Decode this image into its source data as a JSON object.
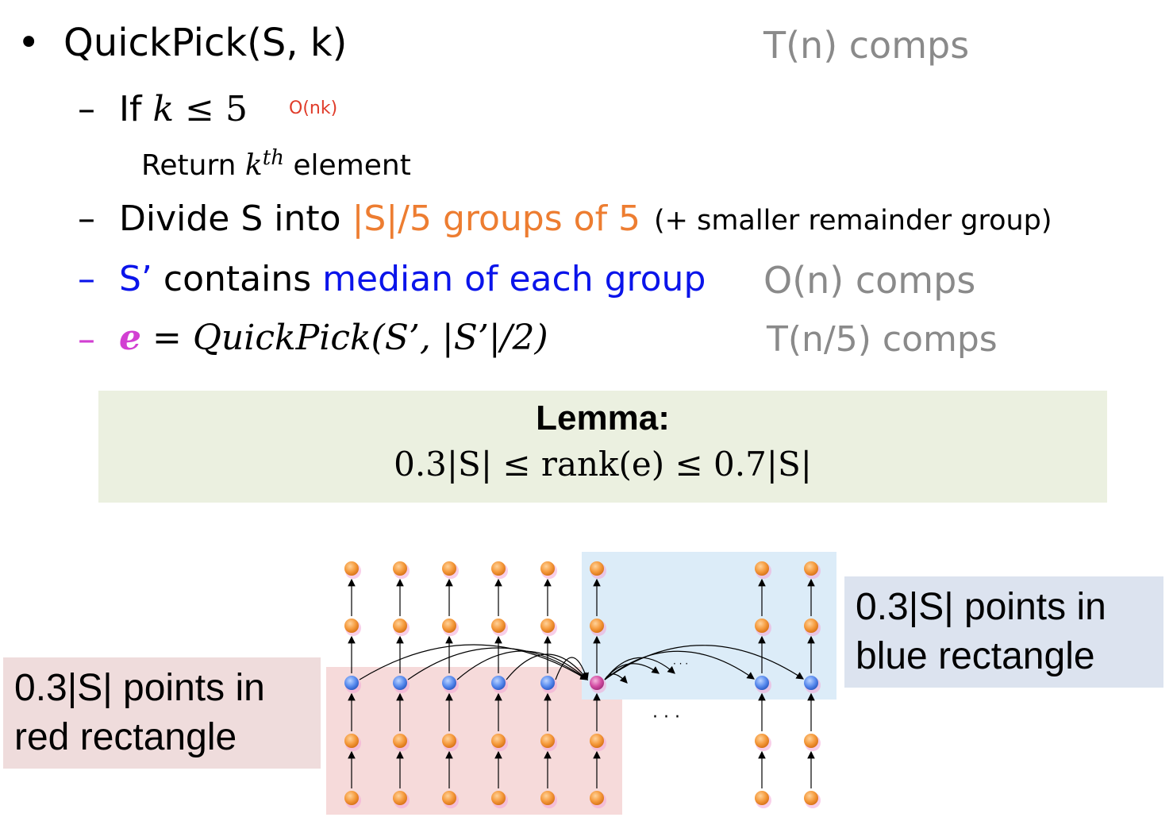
{
  "bullet": "•",
  "title": "QuickPick(S, k)",
  "title_cost": "T(n) comps",
  "dash": "–",
  "step1": {
    "prefix": "If",
    "k": "k",
    "rest": "≤ 5",
    "cost": "O(nk)",
    "sub_prefix": "Return",
    "sub_k": "k",
    "sub_sup": "th",
    "sub_suffix": "element"
  },
  "step2": {
    "prefix": "Divide S into",
    "highlight": "|S|/5 groups of 5",
    "note": "(+ smaller remainder group)"
  },
  "step3": {
    "prefix": "S’",
    "middle": "contains",
    "highlight": "median of each group",
    "cost": "O(n) comps"
  },
  "step4": {
    "e": "e",
    "formula": "= QuickPick(S’, |S’|/2)",
    "cost": "T(n/5) comps"
  },
  "lemma": {
    "title": "Lemma:",
    "formula": "0.3|S| ≤ rank(e) ≤ 0.7|S|"
  },
  "red_label": {
    "line1": "0.3|S| points in",
    "line2": "red rectangle"
  },
  "blue_label": {
    "line1": "0.3|S| points in",
    "line2": "blue rectangle"
  },
  "diagram": {
    "dots_label": "· · ·",
    "small_dots_label": "· · ·"
  },
  "colors": {
    "orange": "#ed7d31",
    "blue": "#0a14ea",
    "magenta": "#d23fd2",
    "gray": "#8a8a8a",
    "red_cost": "#e03c2a",
    "node_orange": "#f59a3c",
    "node_blue": "#5b8def",
    "node_pink": "#d44fa5"
  }
}
